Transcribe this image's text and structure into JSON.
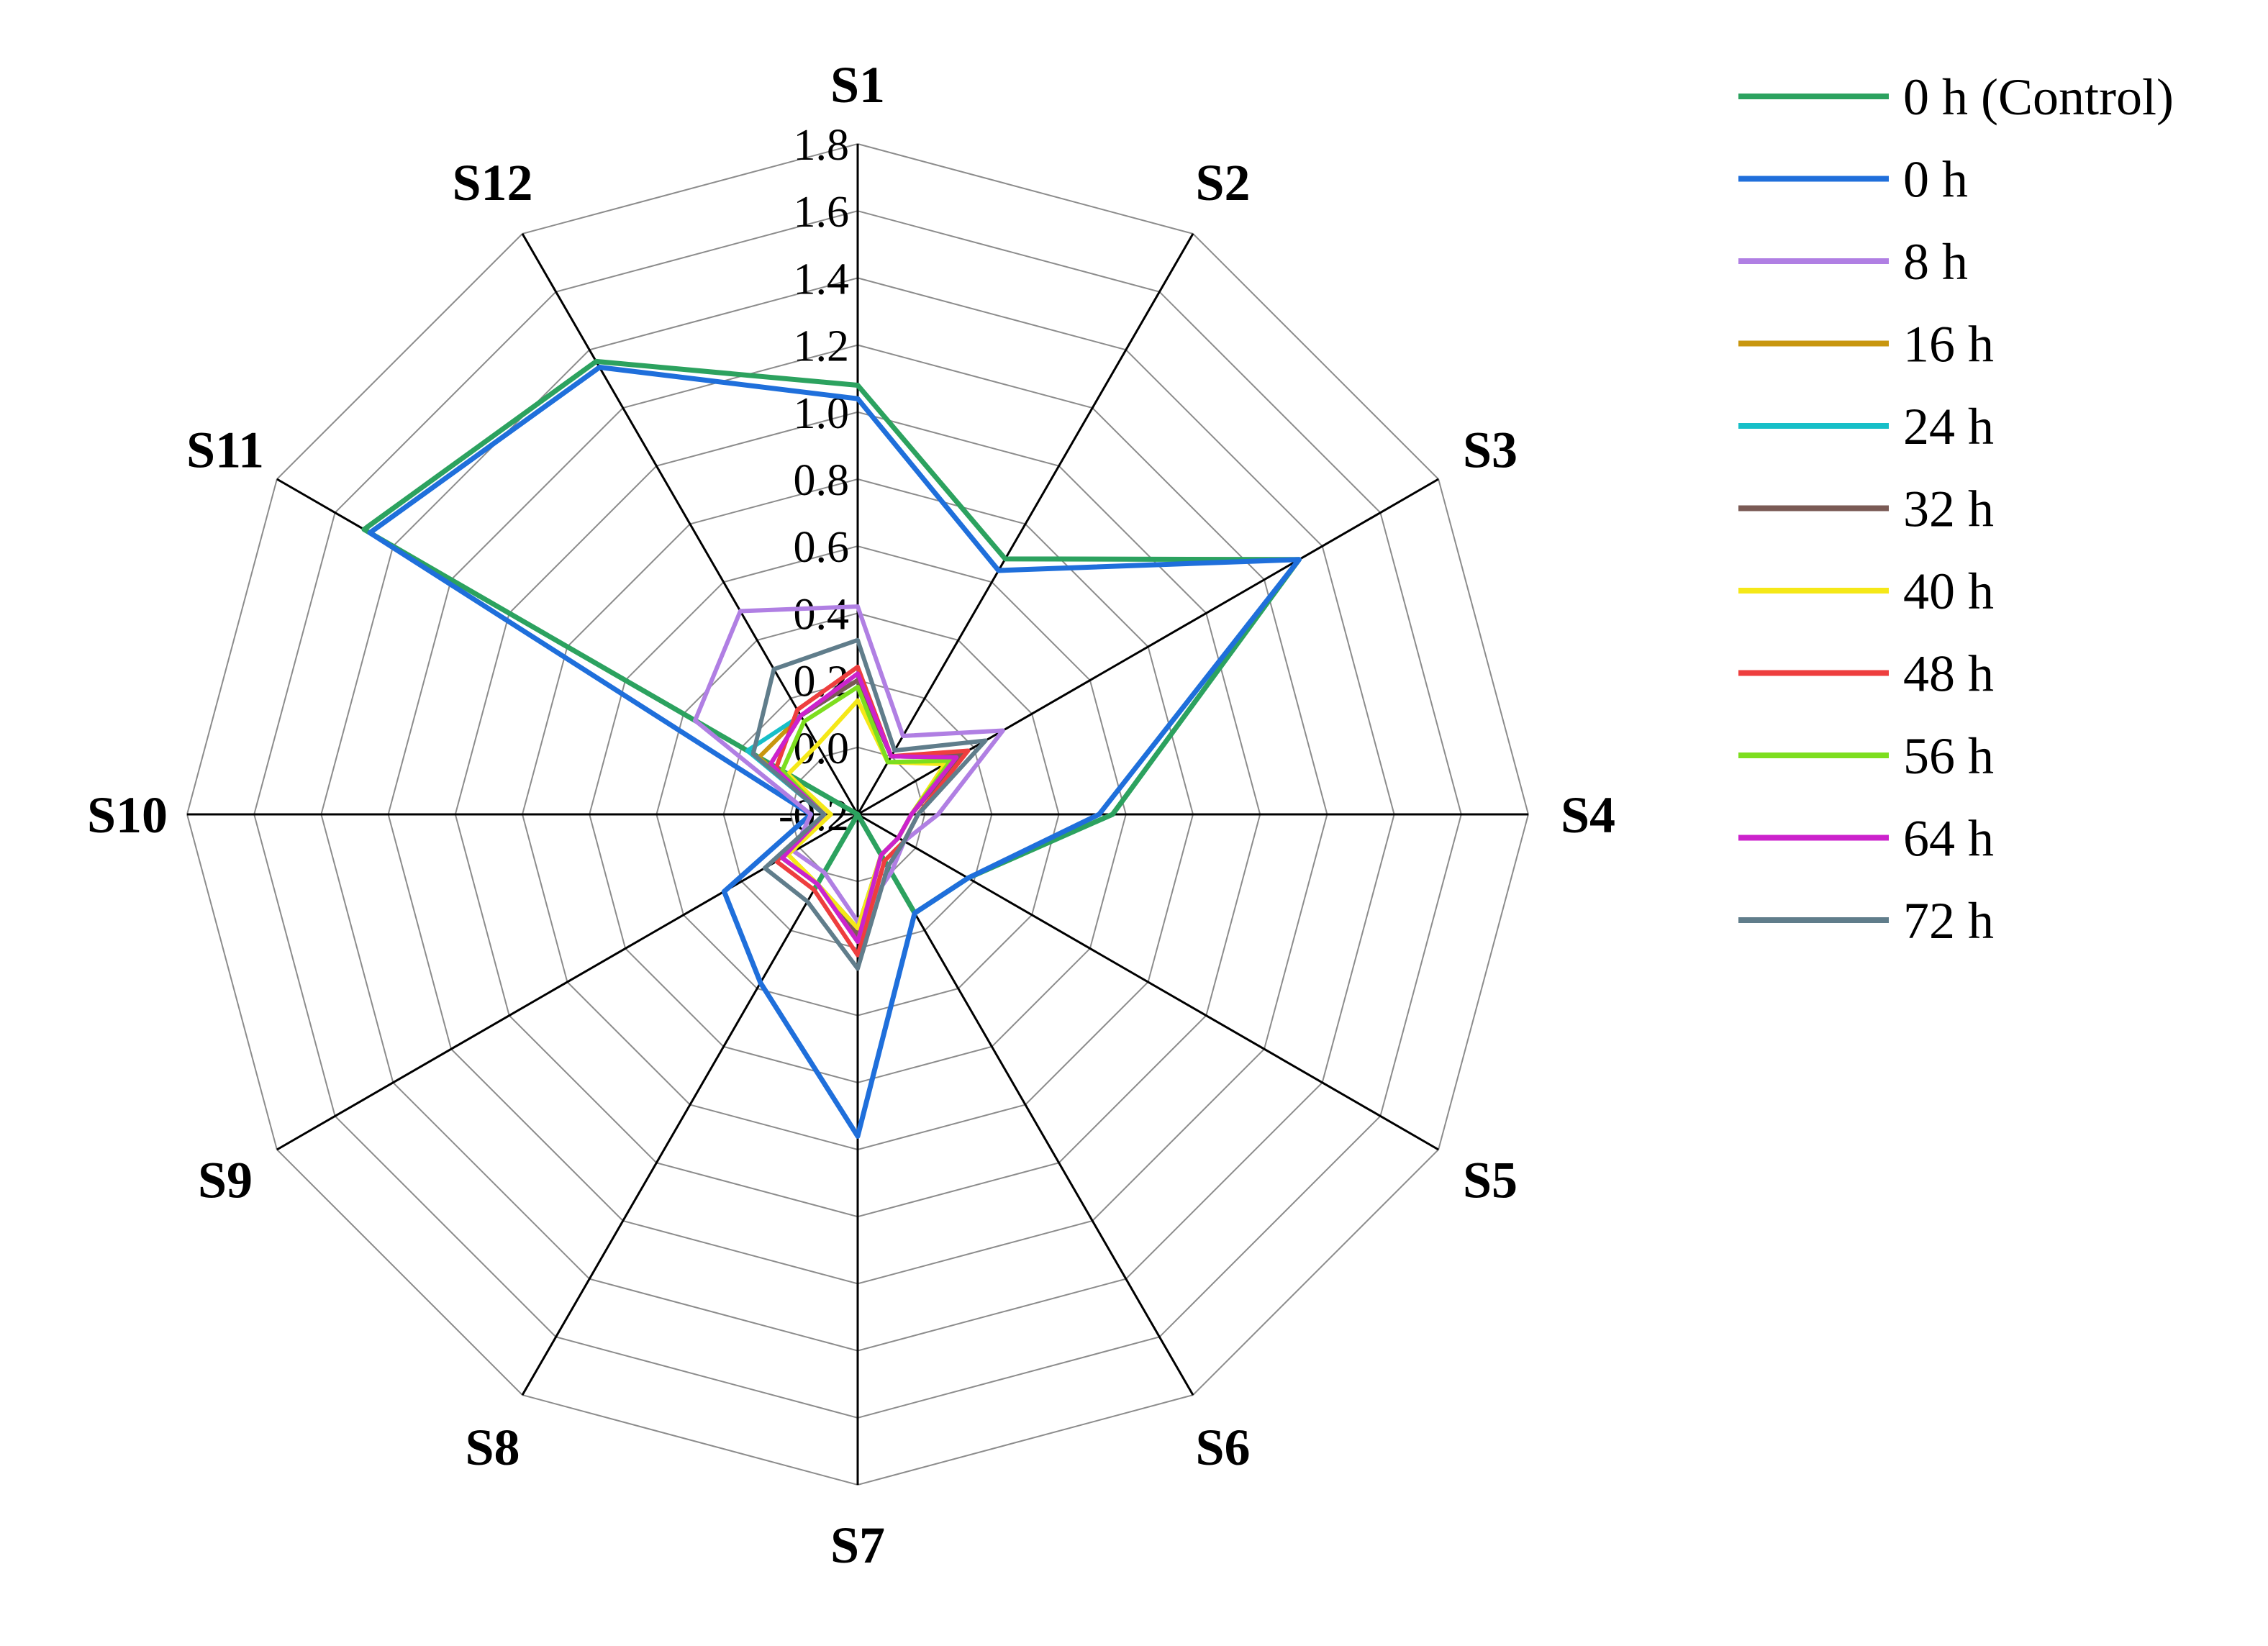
{
  "chart_data": {
    "type": "radar",
    "title": "",
    "axes": [
      "S1",
      "S2",
      "S3",
      "S4",
      "S5",
      "S6",
      "S7",
      "S8",
      "S9",
      "S10",
      "S11",
      "S12"
    ],
    "range": [
      -0.2,
      1.8
    ],
    "ticks": [
      "-0.2",
      "0.0",
      "0.2",
      "0.4",
      "0.6",
      "0.8",
      "1.0",
      "1.2",
      "1.4",
      "1.6",
      "1.8"
    ],
    "grid": true,
    "legend_position": "top-right",
    "series": [
      {
        "name": "0 h (Control)",
        "color": "#2ca25f",
        "values": [
          1.08,
          0.68,
          1.32,
          0.56,
          0.18,
          0.14,
          -0.2,
          0.06,
          -0.2,
          -0.2,
          1.5,
          1.36
        ]
      },
      {
        "name": "0 h",
        "color": "#1f6fdb",
        "values": [
          1.04,
          0.64,
          1.32,
          0.52,
          0.18,
          0.14,
          0.76,
          0.38,
          0.26,
          -0.06,
          1.48,
          1.34
        ]
      },
      {
        "name": "8 h",
        "color": "#b07fe3",
        "values": [
          0.42,
          0.07,
          0.3,
          0.04,
          -0.04,
          0.0,
          0.12,
          0.0,
          0.02,
          -0.06,
          0.36,
          0.5
        ]
      },
      {
        "name": "16 h",
        "color": "#c8960f",
        "values": [
          0.2,
          0.0,
          0.14,
          -0.04,
          -0.06,
          -0.06,
          0.14,
          0.04,
          0.06,
          -0.1,
          0.14,
          0.14
        ]
      },
      {
        "name": "24 h",
        "color": "#17bfc8",
        "values": [
          0.2,
          0.0,
          0.14,
          -0.04,
          -0.06,
          -0.06,
          0.14,
          0.04,
          0.06,
          -0.1,
          0.18,
          0.14
        ]
      },
      {
        "name": "32 h",
        "color": "#7a5a55",
        "values": [
          0.2,
          0.0,
          0.16,
          -0.04,
          -0.06,
          -0.06,
          0.16,
          0.04,
          0.06,
          -0.1,
          0.1,
          0.14
        ]
      },
      {
        "name": "40 h",
        "color": "#f5e818",
        "values": [
          0.14,
          -0.02,
          0.1,
          -0.04,
          -0.06,
          -0.06,
          0.14,
          0.04,
          0.04,
          -0.12,
          0.04,
          0.04
        ]
      },
      {
        "name": "48 h",
        "color": "#ee3e3e",
        "values": [
          0.24,
          0.0,
          0.18,
          -0.02,
          -0.04,
          -0.04,
          0.22,
          0.06,
          0.08,
          -0.1,
          0.08,
          0.16
        ]
      },
      {
        "name": "56 h",
        "color": "#7dde1f",
        "values": [
          0.18,
          -0.02,
          0.12,
          -0.04,
          -0.06,
          -0.06,
          0.18,
          0.04,
          0.06,
          -0.1,
          0.06,
          0.12
        ]
      },
      {
        "name": "64 h",
        "color": "#cc22cc",
        "values": [
          0.22,
          0.0,
          0.14,
          -0.04,
          -0.06,
          -0.06,
          0.18,
          0.04,
          0.06,
          -0.1,
          0.1,
          0.14
        ]
      },
      {
        "name": "72 h",
        "color": "#607d8b",
        "values": [
          0.32,
          0.02,
          0.24,
          -0.02,
          -0.04,
          -0.02,
          0.26,
          0.1,
          0.12,
          -0.1,
          0.16,
          0.3
        ]
      }
    ]
  }
}
